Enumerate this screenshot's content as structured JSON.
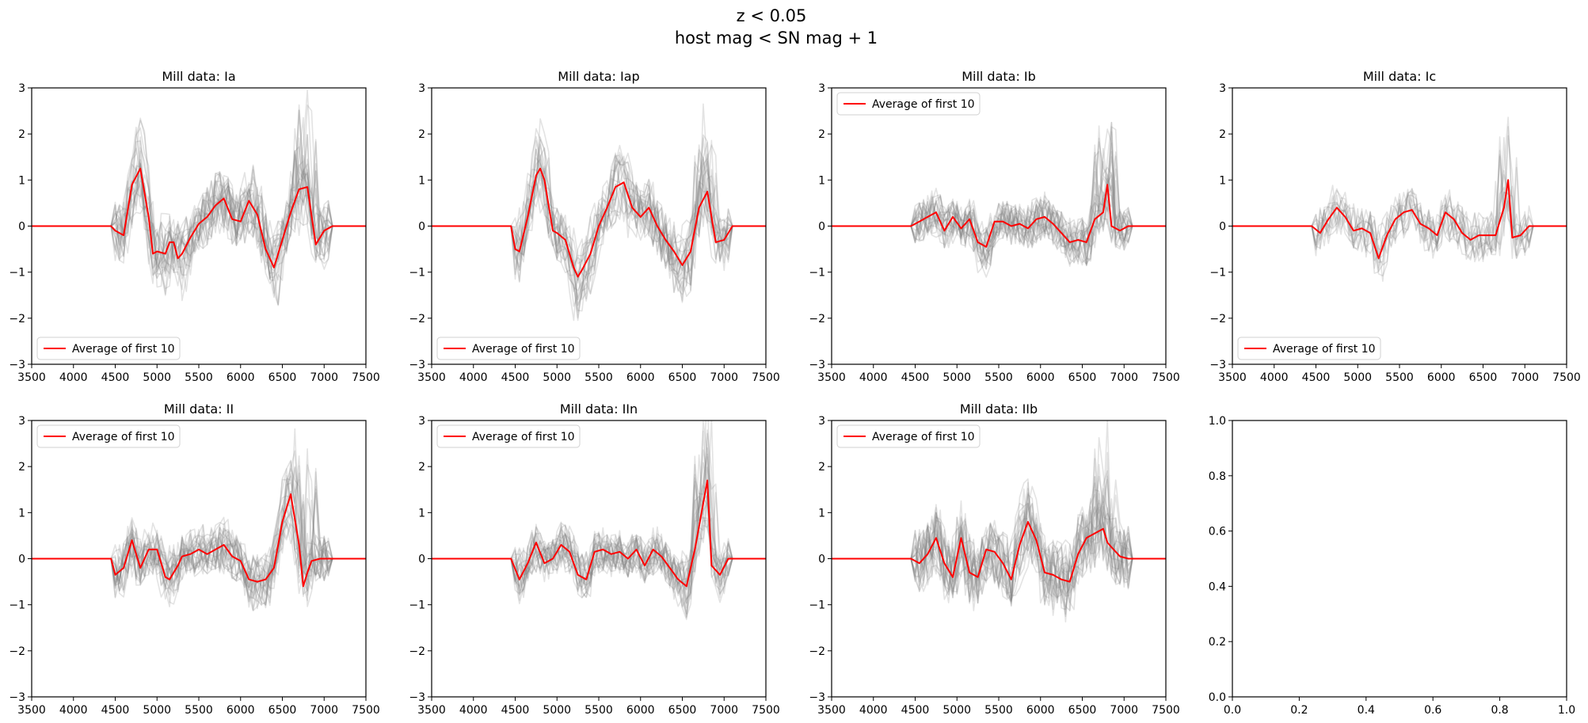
{
  "suptitle": {
    "line1": "z < 0.05",
    "line2": "host mag < SN mag + 1"
  },
  "colors": {
    "average": "#ff0000",
    "samples": "#808080"
  },
  "chart_data": [
    {
      "type": "line",
      "title": "Mill data: Ia",
      "xlim": [
        3500,
        7500
      ],
      "ylim": [
        -3,
        3
      ],
      "xticks": [
        3500,
        4000,
        4500,
        5000,
        5500,
        6000,
        6500,
        7000,
        7500
      ],
      "yticks": [
        -3,
        -2,
        -1,
        0,
        1,
        2,
        3
      ],
      "legend": {
        "label": "Average of first 10",
        "loc": "lower-left"
      },
      "x": [
        3500,
        4450,
        4500,
        4600,
        4700,
        4800,
        4900,
        4950,
        5000,
        5100,
        5150,
        5200,
        5250,
        5300,
        5400,
        5500,
        5600,
        5700,
        5800,
        5900,
        6000,
        6100,
        6200,
        6300,
        6400,
        6500,
        6600,
        6700,
        6800,
        6900,
        7000,
        7100,
        7500
      ],
      "series": [
        {
          "name": "Average of first 10",
          "values": [
            0,
            0,
            -0.1,
            -0.2,
            0.9,
            1.25,
            0.2,
            -0.6,
            -0.55,
            -0.6,
            -0.35,
            -0.35,
            -0.7,
            -0.6,
            -0.25,
            0.05,
            0.2,
            0.45,
            0.6,
            0.15,
            0.1,
            0.55,
            0.25,
            -0.5,
            -0.9,
            -0.3,
            0.3,
            0.8,
            0.85,
            -0.4,
            -0.1,
            0,
            0
          ]
        }
      ],
      "spectra_count": 24,
      "spectra_spread": 0.6,
      "spectra_seed": 11
    },
    {
      "type": "line",
      "title": "Mill data: Iap",
      "xlim": [
        3500,
        7500
      ],
      "ylim": [
        -3,
        3
      ],
      "xticks": [
        3500,
        4000,
        4500,
        5000,
        5500,
        6000,
        6500,
        7000,
        7500
      ],
      "yticks": [
        -3,
        -2,
        -1,
        0,
        1,
        2,
        3
      ],
      "legend": {
        "label": "Average of first 10",
        "loc": "lower-left"
      },
      "x": [
        3500,
        4450,
        4500,
        4550,
        4650,
        4750,
        4800,
        4850,
        4950,
        5000,
        5100,
        5200,
        5250,
        5300,
        5400,
        5500,
        5600,
        5700,
        5800,
        5900,
        6000,
        6100,
        6200,
        6300,
        6400,
        6500,
        6600,
        6700,
        6800,
        6900,
        7000,
        7100,
        7500
      ],
      "series": [
        {
          "name": "Average of first 10",
          "values": [
            0,
            0,
            -0.5,
            -0.55,
            0.2,
            1.1,
            1.25,
            1.0,
            -0.1,
            -0.15,
            -0.3,
            -0.9,
            -1.1,
            -0.95,
            -0.6,
            0.0,
            0.4,
            0.85,
            0.95,
            0.4,
            0.2,
            0.4,
            0.0,
            -0.3,
            -0.55,
            -0.85,
            -0.55,
            0.4,
            0.75,
            -0.35,
            -0.3,
            0,
            0
          ]
        }
      ],
      "spectra_count": 22,
      "spectra_spread": 0.55,
      "spectra_seed": 23
    },
    {
      "type": "line",
      "title": "Mill data: Ib",
      "xlim": [
        3500,
        7500
      ],
      "ylim": [
        -3,
        3
      ],
      "xticks": [
        3500,
        4000,
        4500,
        5000,
        5500,
        6000,
        6500,
        7000,
        7500
      ],
      "yticks": [
        -3,
        -2,
        -1,
        0,
        1,
        2,
        3
      ],
      "legend": {
        "label": "Average of first 10",
        "loc": "upper-left"
      },
      "x": [
        3500,
        4450,
        4550,
        4650,
        4750,
        4850,
        4950,
        5050,
        5150,
        5250,
        5350,
        5450,
        5550,
        5650,
        5750,
        5850,
        5950,
        6050,
        6150,
        6250,
        6350,
        6450,
        6550,
        6650,
        6750,
        6800,
        6850,
        6950,
        7050,
        7500
      ],
      "series": [
        {
          "name": "Average of first 10",
          "values": [
            0,
            0,
            0.1,
            0.2,
            0.3,
            -0.1,
            0.2,
            -0.05,
            0.15,
            -0.35,
            -0.45,
            0.1,
            0.1,
            0.0,
            0.05,
            -0.05,
            0.15,
            0.2,
            0.05,
            -0.15,
            -0.35,
            -0.3,
            -0.35,
            0.15,
            0.3,
            0.9,
            0.0,
            -0.1,
            0,
            0
          ]
        }
      ],
      "spectra_count": 24,
      "spectra_spread": 0.45,
      "spectra_seed": 37
    },
    {
      "type": "line",
      "title": "Mill data: Ic",
      "xlim": [
        3500,
        7500
      ],
      "ylim": [
        -3,
        3
      ],
      "xticks": [
        3500,
        4000,
        4500,
        5000,
        5500,
        6000,
        6500,
        7000,
        7500
      ],
      "yticks": [
        -3,
        -2,
        -1,
        0,
        1,
        2,
        3
      ],
      "legend": {
        "label": "Average of first 10",
        "loc": "lower-left"
      },
      "x": [
        3500,
        4450,
        4550,
        4650,
        4750,
        4850,
        4950,
        5050,
        5150,
        5250,
        5350,
        5450,
        5550,
        5650,
        5750,
        5850,
        5950,
        6050,
        6150,
        6250,
        6350,
        6450,
        6550,
        6650,
        6750,
        6800,
        6850,
        6950,
        7050,
        7500
      ],
      "series": [
        {
          "name": "Average of first 10",
          "values": [
            0,
            0,
            -0.15,
            0.15,
            0.4,
            0.2,
            -0.1,
            -0.05,
            -0.15,
            -0.7,
            -0.2,
            0.15,
            0.3,
            0.35,
            0.05,
            -0.05,
            -0.2,
            0.3,
            0.15,
            -0.15,
            -0.3,
            -0.2,
            -0.2,
            -0.2,
            0.4,
            1.0,
            -0.25,
            -0.2,
            0,
            0
          ]
        }
      ],
      "spectra_count": 14,
      "spectra_spread": 0.5,
      "spectra_seed": 53
    },
    {
      "type": "line",
      "title": "Mill data: II",
      "xlim": [
        3500,
        7500
      ],
      "ylim": [
        -3,
        3
      ],
      "xticks": [
        3500,
        4000,
        4500,
        5000,
        5500,
        6000,
        6500,
        7000,
        7500
      ],
      "yticks": [
        -3,
        -2,
        -1,
        0,
        1,
        2,
        3
      ],
      "legend": {
        "label": "Average of first 10",
        "loc": "upper-left"
      },
      "x": [
        3500,
        4450,
        4500,
        4600,
        4700,
        4800,
        4900,
        5000,
        5100,
        5150,
        5250,
        5300,
        5400,
        5500,
        5600,
        5700,
        5800,
        5900,
        6000,
        6100,
        6200,
        6300,
        6400,
        6500,
        6600,
        6700,
        6750,
        6800,
        6850,
        6950,
        7050,
        7500
      ],
      "series": [
        {
          "name": "Average of first 10",
          "values": [
            0,
            0,
            -0.35,
            -0.2,
            0.4,
            -0.2,
            0.2,
            0.2,
            -0.4,
            -0.45,
            -0.15,
            0.05,
            0.1,
            0.2,
            0.1,
            0.2,
            0.3,
            0.05,
            -0.05,
            -0.45,
            -0.5,
            -0.45,
            -0.2,
            0.8,
            1.4,
            0.3,
            -0.6,
            -0.3,
            -0.05,
            0,
            0,
            0
          ]
        }
      ],
      "spectra_count": 24,
      "spectra_spread": 0.5,
      "spectra_seed": 71
    },
    {
      "type": "line",
      "title": "Mill data: IIn",
      "xlim": [
        3500,
        7500
      ],
      "ylim": [
        -3,
        3
      ],
      "xticks": [
        3500,
        4000,
        4500,
        5000,
        5500,
        6000,
        6500,
        7000,
        7500
      ],
      "yticks": [
        -3,
        -2,
        -1,
        0,
        1,
        2,
        3
      ],
      "legend": {
        "label": "Average of first 10",
        "loc": "upper-left"
      },
      "x": [
        3500,
        4450,
        4550,
        4650,
        4750,
        4850,
        4950,
        5050,
        5150,
        5250,
        5350,
        5450,
        5550,
        5650,
        5750,
        5850,
        5950,
        6050,
        6150,
        6250,
        6350,
        6450,
        6550,
        6650,
        6750,
        6800,
        6850,
        6950,
        7050,
        7500
      ],
      "series": [
        {
          "name": "Average of first 10",
          "values": [
            0,
            0,
            -0.45,
            -0.1,
            0.35,
            -0.1,
            0.0,
            0.3,
            0.15,
            -0.35,
            -0.45,
            0.15,
            0.2,
            0.1,
            0.15,
            0.0,
            0.2,
            -0.15,
            0.2,
            0.05,
            -0.2,
            -0.45,
            -0.6,
            0.2,
            1.2,
            1.7,
            -0.15,
            -0.35,
            0,
            0
          ]
        }
      ],
      "spectra_count": 24,
      "spectra_spread": 0.45,
      "spectra_seed": 89
    },
    {
      "type": "line",
      "title": "Mill data: IIb",
      "xlim": [
        3500,
        7500
      ],
      "ylim": [
        -3,
        3
      ],
      "xticks": [
        3500,
        4000,
        4500,
        5000,
        5500,
        6000,
        6500,
        7000,
        7500
      ],
      "yticks": [
        -3,
        -2,
        -1,
        0,
        1,
        2,
        3
      ],
      "legend": {
        "label": "Average of first 10",
        "loc": "upper-left"
      },
      "x": [
        3500,
        4450,
        4550,
        4650,
        4750,
        4850,
        4950,
        5050,
        5150,
        5250,
        5350,
        5450,
        5550,
        5650,
        5750,
        5850,
        5950,
        6050,
        6150,
        6250,
        6350,
        6450,
        6550,
        6650,
        6750,
        6800,
        6850,
        6950,
        7050,
        7500
      ],
      "series": [
        {
          "name": "Average of first 10",
          "values": [
            0,
            0,
            -0.1,
            0.1,
            0.45,
            -0.1,
            -0.4,
            0.45,
            -0.3,
            -0.4,
            0.2,
            0.15,
            -0.1,
            -0.45,
            0.3,
            0.8,
            0.4,
            -0.3,
            -0.35,
            -0.45,
            -0.5,
            0.1,
            0.45,
            0.55,
            0.65,
            0.35,
            0.25,
            0.05,
            0,
            0
          ]
        }
      ],
      "spectra_count": 24,
      "spectra_spread": 0.7,
      "spectra_seed": 97
    },
    {
      "type": "line",
      "title": "",
      "xlim": [
        0.0,
        1.0
      ],
      "ylim": [
        0.0,
        1.0
      ],
      "xticks": [
        "0.0",
        "0.2",
        "0.4",
        "0.6",
        "0.8",
        "1.0"
      ],
      "yticks": [
        "0.0",
        "0.2",
        "0.4",
        "0.6",
        "0.8",
        "1.0"
      ],
      "series": []
    }
  ]
}
